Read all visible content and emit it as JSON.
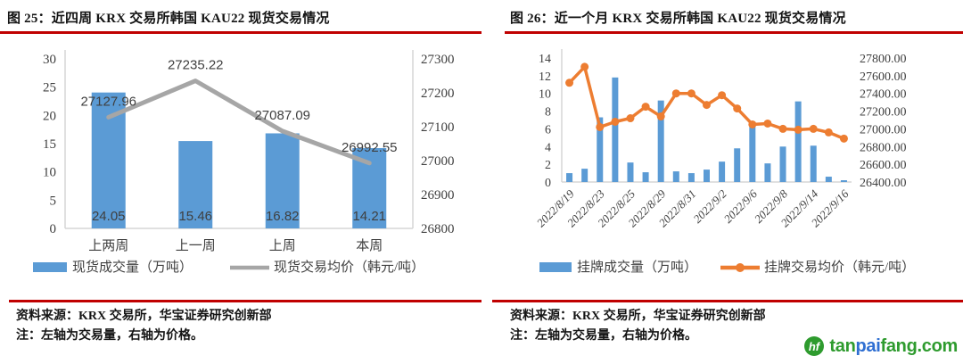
{
  "panels": [
    {
      "title": "图 25：近四周 KRX 交易所韩国 KAU22 现货交易情况",
      "source": "资料来源：KRX 交易所，华宝证券研究创新部",
      "note": "注：左轴为交易量，右轴为价格。"
    },
    {
      "title": "图 26：近一个月 KRX 交易所韩国 KAU22 现货交易情况",
      "source": "资料来源：KRX 交易所，华宝证券研究创新部",
      "note": "注：左轴为交易量，右轴为价格。"
    }
  ],
  "logo": {
    "monogram": "hf",
    "icon_color": "#2e9b2e",
    "segments": [
      {
        "text": "tan",
        "color": "#2e9b2e"
      },
      {
        "text": "pai",
        "color": "#2f6fd2"
      },
      {
        "text": "fang.com",
        "color": "#2e9b2e"
      }
    ]
  },
  "colors": {
    "bar_blue": "#5b9bd5",
    "line_gray": "#a6a6a6",
    "line_orange": "#ed7d31",
    "rule_red": "#c00000",
    "axis_text": "#404040"
  },
  "chart_data": [
    {
      "type": "combo-bar-line",
      "title": "图 25：近四周 KRX 交易所韩国 KAU22 现货交易情况",
      "categories": [
        "上两周",
        "上一周",
        "上周",
        "本周"
      ],
      "series": [
        {
          "name": "现货成交量（万吨）",
          "kind": "bar",
          "axis": "left",
          "color": "#5b9bd5",
          "values": [
            24.05,
            15.46,
            16.82,
            14.21
          ],
          "data_labels": [
            "24.05",
            "15.46",
            "16.82",
            "14.21"
          ]
        },
        {
          "name": "现货交易均价（韩元/吨）",
          "kind": "line",
          "axis": "right",
          "color": "#a6a6a6",
          "markers": false,
          "values": [
            27127.96,
            27235.22,
            27087.09,
            26992.55
          ],
          "data_labels": [
            "27127.96",
            "27235.22",
            "27087.09",
            "26992.55"
          ]
        }
      ],
      "left_axis": {
        "min": 0,
        "max": 30,
        "step": 5,
        "decimals": 0
      },
      "right_axis": {
        "min": 26800,
        "max": 27300,
        "step": 100,
        "decimals": 0
      },
      "legend_position": "bottom",
      "gridlines": false
    },
    {
      "type": "combo-bar-line",
      "title": "图 26：近一个月 KRX 交易所韩国 KAU22 现货交易情况",
      "num_points": 19,
      "x_tick_labels": [
        "2022/8/19",
        "2022/8/23",
        "2022/8/25",
        "2022/8/29",
        "2022/8/31",
        "2022/9/2",
        "2022/9/6",
        "2022/9/8",
        "2022/9/14",
        "2022/9/16"
      ],
      "x_tick_indices": [
        0,
        2,
        4,
        6,
        8,
        10,
        12,
        14,
        16,
        18
      ],
      "series": [
        {
          "name": "挂牌成交量（万吨）",
          "kind": "bar",
          "axis": "left",
          "color": "#5b9bd5",
          "values": [
            1.0,
            1.5,
            7.3,
            11.8,
            2.2,
            1.1,
            9.2,
            1.2,
            1.0,
            1.4,
            2.3,
            3.8,
            6.4,
            2.1,
            4.0,
            9.1,
            4.1,
            0.6,
            0.2
          ]
        },
        {
          "name": "挂牌交易均价（韩元/吨）",
          "kind": "line",
          "axis": "right",
          "color": "#ed7d31",
          "markers": true,
          "values": [
            27520,
            27700,
            27020,
            27080,
            27120,
            27250,
            27140,
            27400,
            27400,
            27270,
            27380,
            27230,
            27050,
            27060,
            27000,
            26990,
            27000,
            26960,
            26890
          ]
        }
      ],
      "left_axis": {
        "min": 0,
        "max": 14,
        "step": 2,
        "decimals": 0
      },
      "right_axis": {
        "min": 26400,
        "max": 27800,
        "step": 200,
        "decimals": 2
      },
      "legend_position": "bottom",
      "gridlines": false
    }
  ]
}
